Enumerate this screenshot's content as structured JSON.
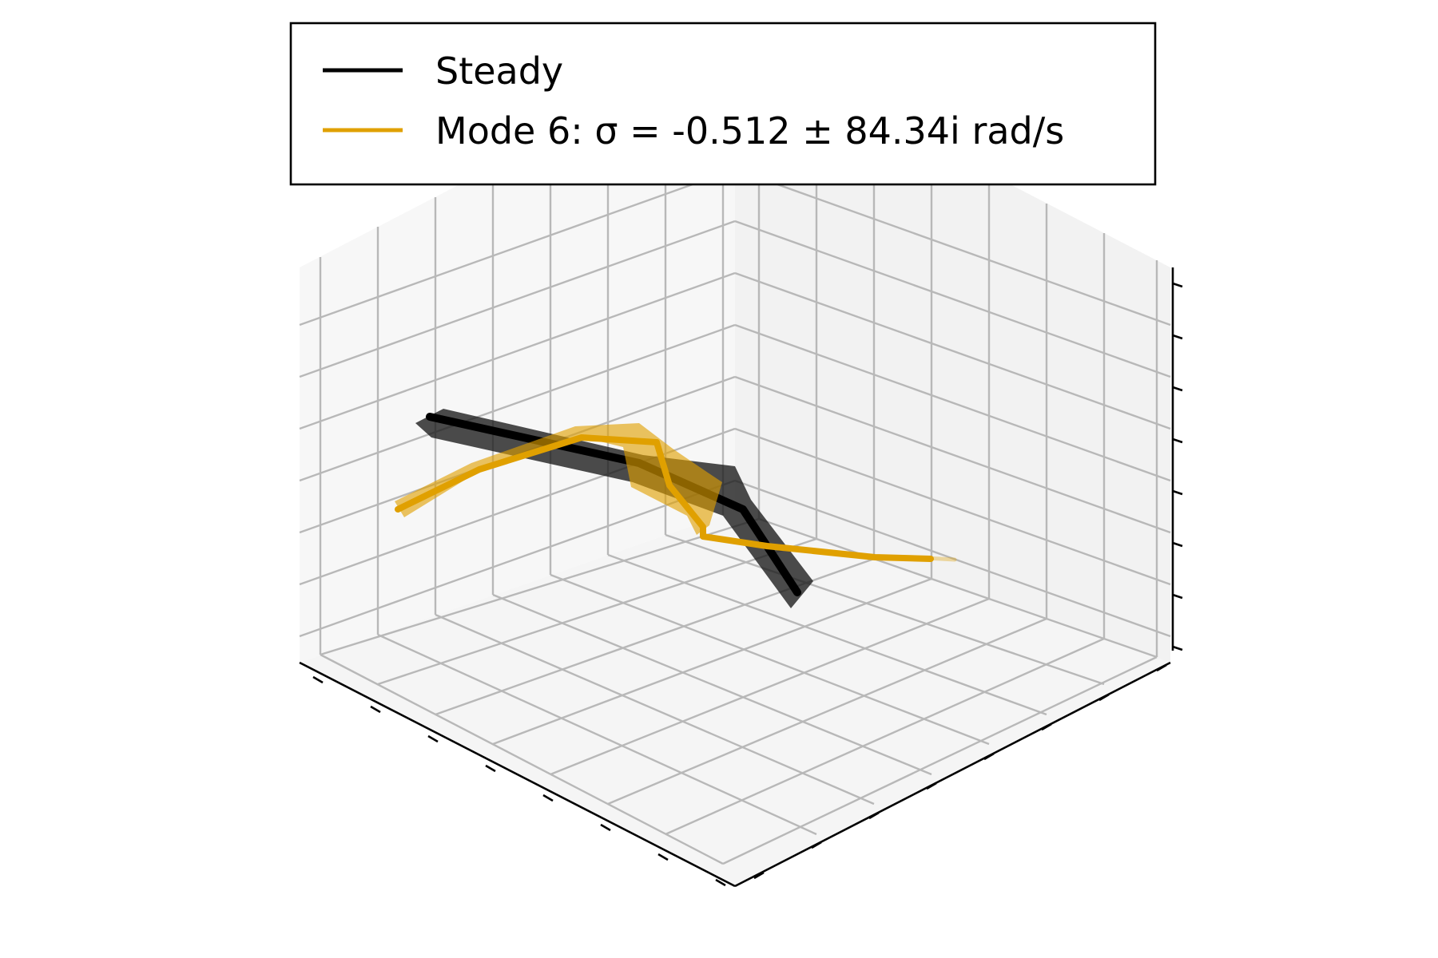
{
  "chart_data": {
    "type": "3d-line",
    "title": "",
    "xlabel": "",
    "ylabel": "",
    "zlabel": "",
    "grid": true,
    "tick_labels_visible": false,
    "legend_placement": "top-center",
    "legend": [
      {
        "name": "Steady",
        "color": "#000000"
      },
      {
        "name": "Mode 6: σ = -0.512 ± 84.34i rad/s",
        "color": "#E0A000"
      }
    ]
  }
}
